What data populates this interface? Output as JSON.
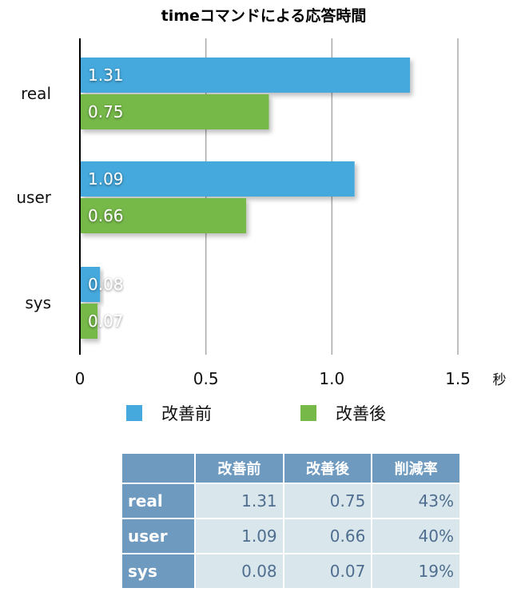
{
  "chart_data": {
    "type": "bar",
    "orientation": "horizontal",
    "title": "timeコマンドによる応答時間",
    "categories": [
      "real",
      "user",
      "sys"
    ],
    "series": [
      {
        "name": "改善前",
        "values": [
          1.31,
          1.09,
          0.08
        ],
        "labels": [
          "1.31",
          "1.09",
          "0.08"
        ],
        "color": "#45a9dd"
      },
      {
        "name": "改善後",
        "values": [
          0.75,
          0.66,
          0.07
        ],
        "labels": [
          "0.75",
          "0.66",
          "0.07"
        ],
        "color": "#76b949"
      }
    ],
    "xlim": [
      0,
      1.5
    ],
    "xticks": [
      0,
      0.5,
      1.0,
      1.5
    ],
    "xtick_labels": [
      "0",
      "0.5",
      "1.0",
      "1.5"
    ],
    "xunit": "秒",
    "grid": true,
    "legend": "bottom"
  },
  "table": {
    "headers": [
      "",
      "改善前",
      "改善後",
      "削減率"
    ],
    "rows": [
      {
        "label": "real",
        "cells": [
          "1.31",
          "0.75",
          "43%"
        ]
      },
      {
        "label": "user",
        "cells": [
          "1.09",
          "0.66",
          "40%"
        ]
      },
      {
        "label": "sys",
        "cells": [
          "0.08",
          "0.07",
          "19%"
        ]
      }
    ]
  }
}
